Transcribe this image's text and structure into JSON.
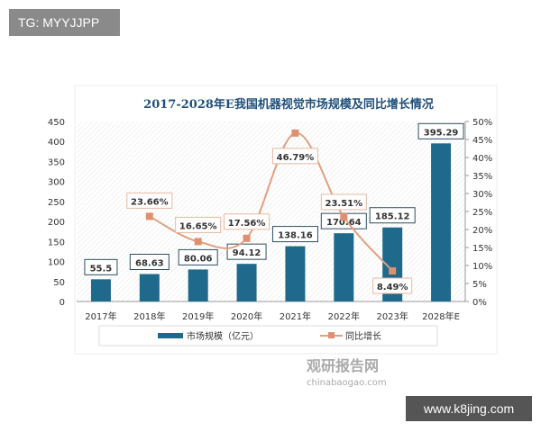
{
  "watermarks": {
    "top_left": "TG: MYYJJPP",
    "bottom_right": "www.k8jing.com",
    "logo_cn": "观研报告网",
    "logo_url": "chinabaogao.com"
  },
  "colors": {
    "bar": "#1f6a8c",
    "line": "#e0a080",
    "marker": "#e09070",
    "title": "#1f4f7a"
  },
  "chart_data": {
    "type": "bar+line",
    "title": "2017-2028年E我国机器视觉市场规模及同比增长情况",
    "categories": [
      "2017年",
      "2018年",
      "2019年",
      "2020年",
      "2021年",
      "2022年",
      "2023年",
      "2028年E"
    ],
    "series": [
      {
        "name": "市场规模（亿元）",
        "type": "bar",
        "axis": "left",
        "values": [
          55.5,
          68.63,
          80.06,
          94.12,
          138.16,
          170.64,
          185.12,
          395.29
        ],
        "labels": [
          "55.5",
          "68.63",
          "80.06",
          "94.12",
          "138.16",
          "170.64",
          "185.12",
          "395.29"
        ]
      },
      {
        "name": "同比增长",
        "type": "line",
        "axis": "right",
        "values": [
          null,
          23.66,
          16.65,
          17.56,
          46.79,
          23.51,
          8.49,
          null
        ],
        "labels": [
          "",
          "23.66%",
          "16.65%",
          "17.56%",
          "46.79%",
          "23.51%",
          "8.49%",
          ""
        ]
      }
    ],
    "left_axis": {
      "ylim": [
        0,
        450
      ],
      "ticks": [
        "0",
        "50",
        "100",
        "150",
        "200",
        "250",
        "300",
        "350",
        "400",
        "450"
      ]
    },
    "right_axis": {
      "ylim": [
        0,
        50
      ],
      "ticks": [
        "0%",
        "5%",
        "10%",
        "15%",
        "20%",
        "25%",
        "30%",
        "35%",
        "40%",
        "45%",
        "50%"
      ]
    },
    "legend": "bottom",
    "grid": false
  }
}
